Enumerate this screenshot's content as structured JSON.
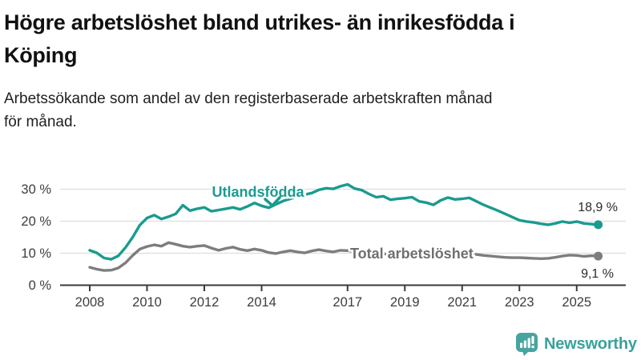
{
  "header": {
    "title_line1": "Högre arbetslöshet bland utrikes- än inrikesfödda i",
    "title_line2": "Köping",
    "subtitle_line1": "Arbetssökande som andel av den registerbaserade arbetskraften månad",
    "subtitle_line2": "för månad."
  },
  "chart_data": {
    "type": "line",
    "x_start": 2008,
    "x_step_years": 0.25,
    "x_ticks": [
      "2008",
      "2010",
      "2012",
      "2014",
      "2017",
      "2019",
      "2021",
      "2023",
      "2025"
    ],
    "y_ticks": [
      "0 %",
      "10 %",
      "20 %",
      "30 %"
    ],
    "ylabel": "",
    "xlabel": "",
    "ylim": [
      0,
      33
    ],
    "grid": "horizontal",
    "series": [
      {
        "name": "Utlandsfödda",
        "color": "#1a9b8f",
        "end_label": "18,9 %",
        "values": [
          10.9,
          10.1,
          8.5,
          8.1,
          9.2,
          11.8,
          15.0,
          18.8,
          21.0,
          21.9,
          20.7,
          21.4,
          22.3,
          25.0,
          23.3,
          23.9,
          24.3,
          23.1,
          23.5,
          23.9,
          24.3,
          23.7,
          24.6,
          25.7,
          24.8,
          24.2,
          25.3,
          26.3,
          27.0,
          27.7,
          28.3,
          28.8,
          29.8,
          30.3,
          30.1,
          30.9,
          31.5,
          30.2,
          29.7,
          28.5,
          27.5,
          27.8,
          26.7,
          27.0,
          27.2,
          27.5,
          26.2,
          25.8,
          25.1,
          26.5,
          27.4,
          26.8,
          27.0,
          27.3,
          26.2,
          25.1,
          24.2,
          23.3,
          22.3,
          21.3,
          20.3,
          19.9,
          19.6,
          19.2,
          18.9,
          19.3,
          19.9,
          19.5,
          19.9,
          19.3,
          19.1,
          18.9
        ]
      },
      {
        "name": "Total arbetslöshet",
        "color": "#7d7d7d",
        "end_label": "9,1 %",
        "values": [
          5.6,
          5.0,
          4.6,
          4.7,
          5.4,
          7.0,
          9.3,
          11.3,
          12.1,
          12.6,
          12.2,
          13.3,
          12.8,
          12.2,
          11.9,
          12.2,
          12.4,
          11.6,
          10.9,
          11.5,
          11.9,
          11.2,
          10.8,
          11.3,
          10.9,
          10.2,
          9.9,
          10.4,
          10.8,
          10.4,
          10.1,
          10.7,
          11.1,
          10.7,
          10.4,
          10.9,
          10.8,
          10.5,
          10.3,
          10.1,
          10.0,
          9.8,
          9.6,
          9.7,
          9.8,
          9.6,
          9.4,
          9.5,
          9.7,
          10.3,
          10.5,
          10.1,
          10.1,
          9.9,
          9.6,
          9.3,
          9.1,
          8.9,
          8.7,
          8.6,
          8.6,
          8.5,
          8.4,
          8.3,
          8.4,
          8.7,
          9.1,
          9.4,
          9.3,
          9.0,
          9.2,
          9.1
        ]
      }
    ]
  },
  "footer": {
    "logo_text": "Newsworthy",
    "logo_color": "#46a59e"
  }
}
